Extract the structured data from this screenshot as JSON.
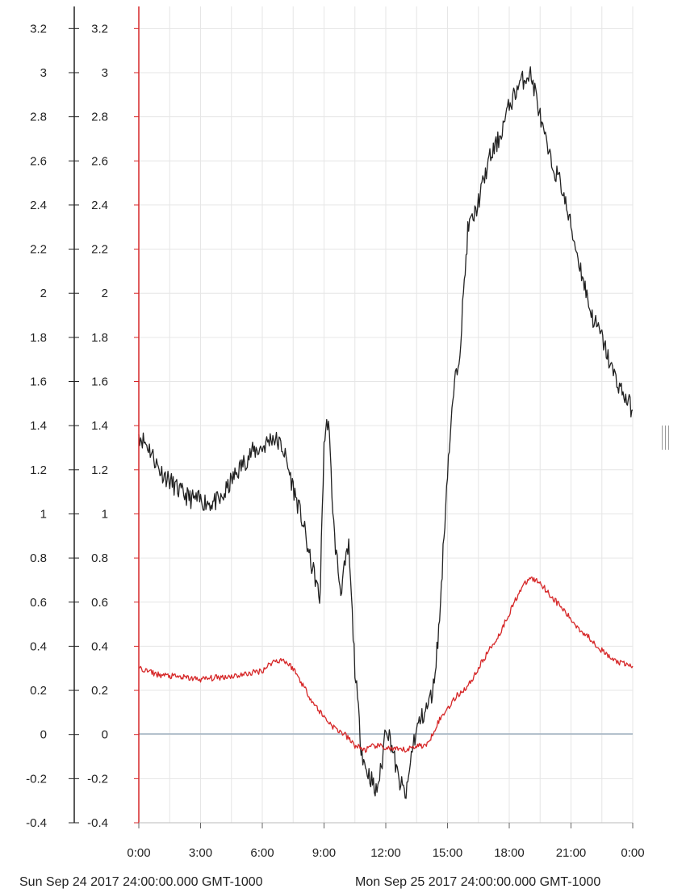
{
  "chart_data": {
    "type": "line",
    "title": "",
    "xlabel": "",
    "ylabel": "",
    "x_range": [
      "0:00",
      "0:00 (next day)"
    ],
    "x_ticks": [
      "0:00",
      "3:00",
      "6:00",
      "9:00",
      "12:00",
      "15:00",
      "18:00",
      "21:00",
      "0:00"
    ],
    "x_range_labels": [
      "Sun Sep 24 2017 24:00:00.000 GMT-1000",
      "Mon Sep 25 2017 24:00:00.000 GMT-1000"
    ],
    "ylim": [
      -0.4,
      3.3
    ],
    "y_ticks": [
      "-0.4",
      "-0.2",
      "0",
      "0.2",
      "0.4",
      "0.6",
      "0.8",
      "1",
      "1.2",
      "1.4",
      "1.6",
      "1.8",
      "2",
      "2.2",
      "2.4",
      "2.6",
      "2.8",
      "3",
      "3.2"
    ],
    "y_axes": [
      "left-outer",
      "left-inner"
    ],
    "grid": true,
    "legend": "none",
    "series": [
      {
        "color": "#222222",
        "hours": [
          0,
          0.5,
          1,
          1.5,
          2,
          2.5,
          3,
          3.5,
          4,
          4.5,
          5,
          5.5,
          6,
          6.5,
          7,
          7.5,
          8,
          8.3,
          8.6,
          8.8,
          9,
          9.2,
          9.5,
          9.8,
          10.2,
          10.5,
          10.8,
          11,
          11.3,
          11.5,
          11.8,
          12,
          12.3,
          12.6,
          13,
          13.3,
          13.6,
          14,
          14.3,
          14.6,
          15,
          15.3,
          15.6,
          16,
          16.3,
          16.6,
          17,
          17.5,
          18,
          18.5,
          19,
          19.3,
          19.6,
          20,
          20.5,
          21,
          21.5,
          22,
          22.5,
          23,
          23.5,
          24
        ],
        "values": [
          1.36,
          1.3,
          1.2,
          1.15,
          1.1,
          1.07,
          1.06,
          1.05,
          1.06,
          1.15,
          1.22,
          1.28,
          1.3,
          1.35,
          1.3,
          1.12,
          0.95,
          0.8,
          0.7,
          0.6,
          1.32,
          1.44,
          0.9,
          0.65,
          0.85,
          0.3,
          -0.05,
          -0.15,
          -0.2,
          -0.27,
          -0.15,
          0.05,
          -0.05,
          -0.2,
          -0.28,
          -0.05,
          0.05,
          0.12,
          0.2,
          0.5,
          1.2,
          1.55,
          1.75,
          2.3,
          2.35,
          2.45,
          2.6,
          2.7,
          2.85,
          2.95,
          3.0,
          2.9,
          2.75,
          2.6,
          2.5,
          2.3,
          2.1,
          1.9,
          1.8,
          1.65,
          1.55,
          1.47
        ]
      },
      {
        "color": "#d62728",
        "hours": [
          0,
          1,
          2,
          3,
          4,
          5,
          6,
          6.5,
          7,
          7.5,
          8,
          8.5,
          9,
          9.5,
          10,
          10.5,
          11,
          11.5,
          12,
          12.5,
          13,
          13.5,
          14,
          14.5,
          15,
          15.5,
          16,
          16.5,
          17,
          17.5,
          18,
          18.5,
          19,
          19.5,
          20,
          20.5,
          21,
          21.5,
          22,
          22.5,
          23,
          23.5,
          24
        ],
        "values": [
          0.3,
          0.27,
          0.26,
          0.25,
          0.26,
          0.27,
          0.29,
          0.33,
          0.34,
          0.3,
          0.22,
          0.14,
          0.08,
          0.03,
          0.0,
          -0.05,
          -0.07,
          -0.05,
          -0.06,
          -0.07,
          -0.07,
          -0.05,
          -0.05,
          0.05,
          0.12,
          0.18,
          0.22,
          0.3,
          0.38,
          0.45,
          0.55,
          0.65,
          0.71,
          0.69,
          0.63,
          0.58,
          0.52,
          0.47,
          0.43,
          0.38,
          0.34,
          0.32,
          0.31
        ]
      }
    ]
  }
}
